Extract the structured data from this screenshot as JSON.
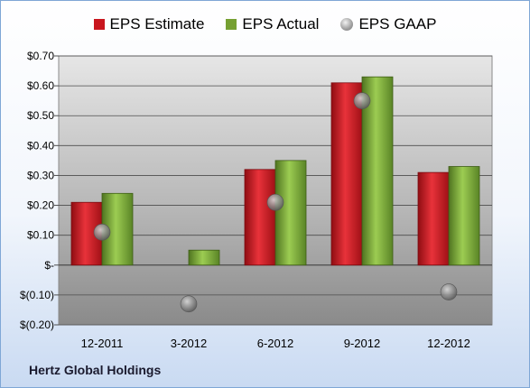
{
  "chart_data": {
    "type": "bar",
    "categories": [
      "12-2011",
      "3-2012",
      "6-2012",
      "9-2012",
      "12-2012"
    ],
    "series": [
      {
        "name": "EPS Estimate",
        "kind": "bar",
        "color": "#c9161e",
        "values": [
          0.21,
          null,
          0.32,
          0.61,
          0.31
        ]
      },
      {
        "name": "EPS Actual",
        "kind": "bar",
        "color": "#76a032",
        "values": [
          0.24,
          0.05,
          0.35,
          0.63,
          0.33
        ]
      },
      {
        "name": "EPS GAAP",
        "kind": "marker",
        "color": "#8c8c8c",
        "values": [
          0.11,
          -0.13,
          0.21,
          0.55,
          -0.09
        ]
      }
    ],
    "ylim": [
      -0.2,
      0.7
    ],
    "yticks": [
      0.7,
      0.6,
      0.5,
      0.4,
      0.3,
      0.2,
      0.1,
      0,
      -0.1,
      -0.2
    ],
    "ytick_labels": [
      "$0.70",
      "$0.60",
      "$0.50",
      "$0.40",
      "$0.30",
      "$0.20",
      "$0.10",
      "$-",
      "$(0.10)",
      "$(0.20)"
    ],
    "legend_position": "top",
    "grid": true,
    "title": "",
    "xlabel": "",
    "ylabel": ""
  },
  "legend": {
    "estimate_label": "EPS Estimate",
    "actual_label": "EPS Actual",
    "gaap_label": "EPS GAAP"
  },
  "company": "Hertz Global Holdings"
}
